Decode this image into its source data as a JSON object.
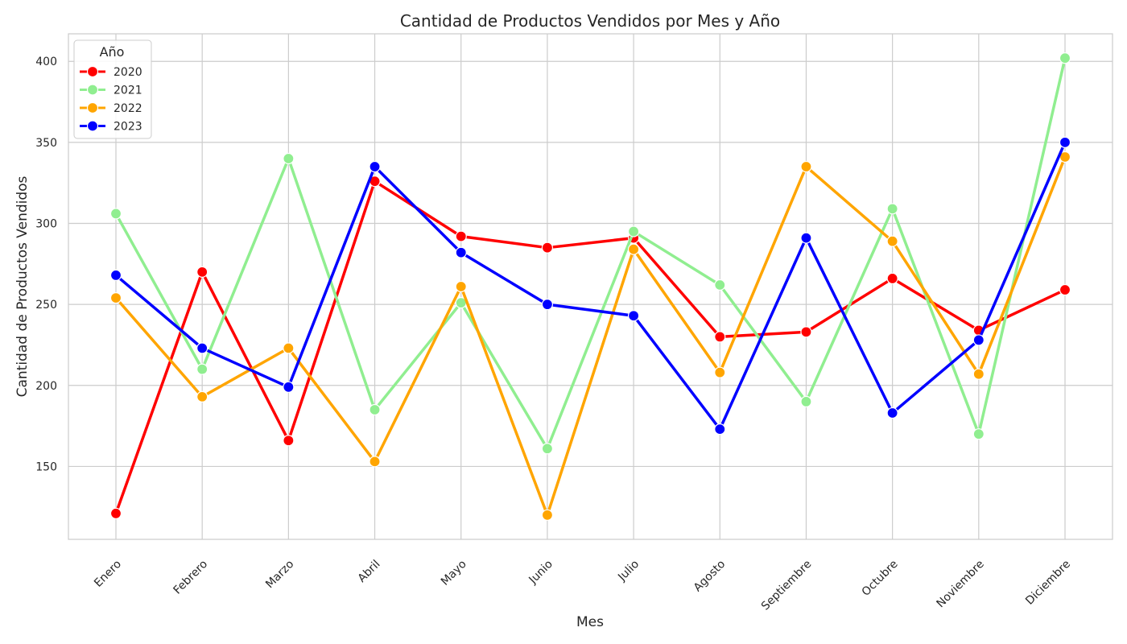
{
  "chart_data": {
    "type": "line",
    "title": "Cantidad de Productos Vendidos por Mes y Año",
    "xlabel": "Mes",
    "ylabel": "Cantidad de Productos Vendidos",
    "categories": [
      "Enero",
      "Febrero",
      "Marzo",
      "Abril",
      "Mayo",
      "Junio",
      "Julio",
      "Agosto",
      "Septiembre",
      "Octubre",
      "Noviembre",
      "Diciembre"
    ],
    "ylim": [
      105,
      417
    ],
    "yticks": [
      150,
      200,
      250,
      300,
      350,
      400
    ],
    "grid": true,
    "legend": {
      "title": "Año",
      "placement": "top-left"
    },
    "series": [
      {
        "name": "2020",
        "color": "#ff0000",
        "values": [
          121,
          270,
          166,
          326,
          292,
          285,
          291,
          230,
          233,
          266,
          234,
          259
        ]
      },
      {
        "name": "2021",
        "color": "#90ee90",
        "values": [
          306,
          210,
          340,
          185,
          251,
          161,
          295,
          262,
          190,
          309,
          170,
          402
        ]
      },
      {
        "name": "2022",
        "color": "#ffa500",
        "values": [
          254,
          193,
          223,
          153,
          261,
          120,
          284,
          208,
          335,
          289,
          207,
          341
        ]
      },
      {
        "name": "2023",
        "color": "#0000ff",
        "values": [
          268,
          223,
          199,
          335,
          282,
          250,
          243,
          173,
          291,
          183,
          228,
          350
        ]
      }
    ]
  }
}
